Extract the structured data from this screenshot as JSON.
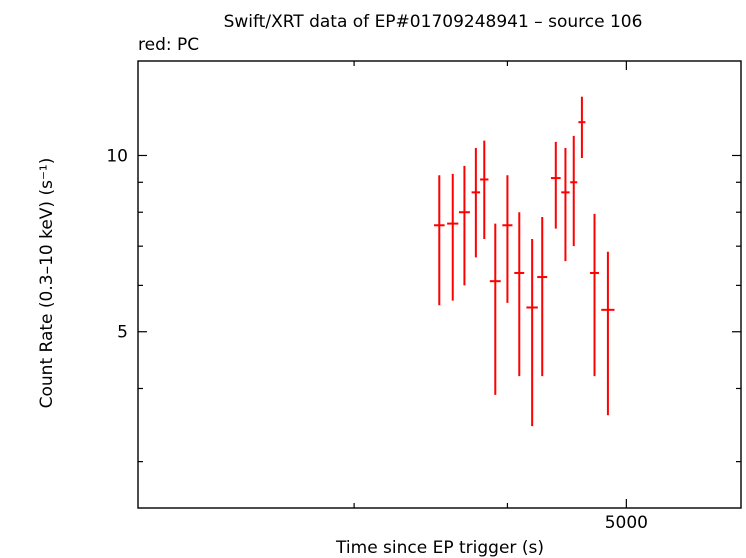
{
  "chart_data": {
    "type": "scatter",
    "title": "Swift/XRT data of EP#01709248941 – source 106",
    "legend_text": "red: PC",
    "xlabel": "Time since EP trigger (s)",
    "ylabel": "Count Rate (0.3–10 keV) (s⁻¹)",
    "x_scale": "log",
    "y_scale": "log",
    "xlim": [
      2000,
      6200
    ],
    "ylim": [
      2.5,
      14.5
    ],
    "x_tick_labels": [
      {
        "value": 5000,
        "label": "5000"
      }
    ],
    "x_minor_ticks": [
      3000,
      4000
    ],
    "y_tick_labels": [
      {
        "value": 5,
        "label": "5"
      },
      {
        "value": 10,
        "label": "10"
      }
    ],
    "y_minor_ticks": [
      3,
      4,
      6,
      7,
      8,
      9
    ],
    "grid": false,
    "series": [
      {
        "color": "#ff0000",
        "points": [
          {
            "x": 3520,
            "xerr_low": 35,
            "xerr_high": 35,
            "y": 7.6,
            "ylow": 5.55,
            "yhigh": 9.25
          },
          {
            "x": 3610,
            "xerr_low": 38,
            "xerr_high": 38,
            "y": 7.65,
            "ylow": 5.65,
            "yhigh": 9.3
          },
          {
            "x": 3690,
            "xerr_low": 38,
            "xerr_high": 38,
            "y": 8.0,
            "ylow": 6.0,
            "yhigh": 9.6
          },
          {
            "x": 3770,
            "xerr_low": 30,
            "xerr_high": 30,
            "y": 8.65,
            "ylow": 6.7,
            "yhigh": 10.3
          },
          {
            "x": 3830,
            "xerr_low": 30,
            "xerr_high": 30,
            "y": 9.1,
            "ylow": 7.2,
            "yhigh": 10.6
          },
          {
            "x": 3910,
            "xerr_low": 40,
            "xerr_high": 40,
            "y": 6.1,
            "ylow": 3.9,
            "yhigh": 7.65
          },
          {
            "x": 4000,
            "xerr_low": 38,
            "xerr_high": 38,
            "y": 7.6,
            "ylow": 5.6,
            "yhigh": 9.25
          },
          {
            "x": 4090,
            "xerr_low": 38,
            "xerr_high": 38,
            "y": 6.3,
            "ylow": 4.2,
            "yhigh": 8.0
          },
          {
            "x": 4190,
            "xerr_low": 45,
            "xerr_high": 45,
            "y": 5.5,
            "ylow": 3.45,
            "yhigh": 7.2
          },
          {
            "x": 4270,
            "xerr_low": 40,
            "xerr_high": 40,
            "y": 6.2,
            "ylow": 4.2,
            "yhigh": 7.85
          },
          {
            "x": 4380,
            "xerr_low": 40,
            "xerr_high": 40,
            "y": 9.15,
            "ylow": 7.5,
            "yhigh": 10.55
          },
          {
            "x": 4460,
            "xerr_low": 35,
            "xerr_high": 35,
            "y": 8.65,
            "ylow": 6.6,
            "yhigh": 10.3
          },
          {
            "x": 4530,
            "xerr_low": 30,
            "xerr_high": 30,
            "y": 9.0,
            "ylow": 7.0,
            "yhigh": 10.8
          },
          {
            "x": 4600,
            "xerr_low": 30,
            "xerr_high": 30,
            "y": 11.4,
            "ylow": 9.9,
            "yhigh": 12.6
          },
          {
            "x": 4710,
            "xerr_low": 40,
            "xerr_high": 40,
            "y": 6.3,
            "ylow": 4.2,
            "yhigh": 7.95
          },
          {
            "x": 4830,
            "xerr_low": 60,
            "xerr_high": 60,
            "y": 5.45,
            "ylow": 3.6,
            "yhigh": 6.85
          }
        ]
      }
    ]
  }
}
